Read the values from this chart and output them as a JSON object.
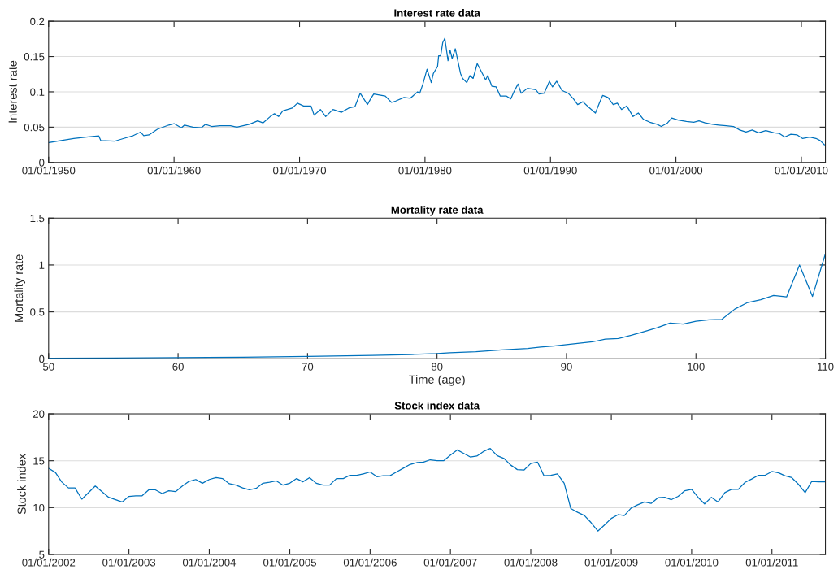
{
  "chart_data": [
    {
      "type": "line",
      "title": "Interest rate data",
      "ylabel": "Interest rate",
      "grid": "y",
      "color": "#0072bd",
      "x": [
        "1950-01",
        "1951-01",
        "1952-01",
        "1953-01",
        "1954-01",
        "1954-03",
        "1955-04",
        "1956-01",
        "1956-10",
        "1957-05",
        "1957-08",
        "1958-01",
        "1958-09",
        "1959-08",
        "1960-01",
        "1960-08",
        "1960-11",
        "1961-07",
        "1962-03",
        "1962-07",
        "1963-01",
        "1963-09",
        "1964-07",
        "1965-01",
        "1966-01",
        "1966-09",
        "1967-02",
        "1967-09",
        "1968-01",
        "1968-05",
        "1968-09",
        "1969-06",
        "1969-11",
        "1970-05",
        "1970-12",
        "1971-03",
        "1971-09",
        "1972-02",
        "1972-09",
        "1973-05",
        "1973-12",
        "1974-06",
        "1974-11",
        "1975-06",
        "1975-09",
        "1975-12",
        "1976-11",
        "1977-05",
        "1977-09",
        "1978-05",
        "1978-11",
        "1979-06",
        "1979-08",
        "1979-11",
        "1980-03",
        "1980-07",
        "1980-09",
        "1981-01",
        "1981-02",
        "1981-04",
        "1981-06",
        "1981-08",
        "1981-11",
        "1982-01",
        "1982-03",
        "1982-06",
        "1982-11",
        "1983-01",
        "1983-05",
        "1983-08",
        "1983-11",
        "1984-03",
        "1984-11",
        "1985-01",
        "1985-05",
        "1985-09",
        "1986-01",
        "1986-07",
        "1986-11",
        "1987-02",
        "1987-06",
        "1987-09",
        "1988-03",
        "1988-11",
        "1989-02",
        "1989-07",
        "1989-12",
        "1990-03",
        "1990-07",
        "1990-12",
        "1991-06",
        "1991-11",
        "1992-03",
        "1992-08",
        "1993-01",
        "1993-08",
        "1993-12",
        "1994-03",
        "1994-08",
        "1995-01",
        "1995-05",
        "1995-09",
        "1996-02",
        "1996-08",
        "1997-01",
        "1997-06",
        "1997-12",
        "1998-07",
        "1998-11",
        "1999-05",
        "1999-09",
        "2000-03",
        "2000-11",
        "2001-06",
        "2001-11",
        "2002-05",
        "2002-12",
        "2003-06",
        "2004-01",
        "2004-08",
        "2005-02",
        "2005-08",
        "2006-02",
        "2006-08",
        "2007-03",
        "2007-11",
        "2008-04",
        "2008-09",
        "2009-03",
        "2009-09",
        "2010-02",
        "2010-09",
        "2011-03",
        "2011-07",
        "2011-11"
      ],
      "values": [
        0.028,
        0.031,
        0.034,
        0.036,
        0.0375,
        0.031,
        0.03,
        0.034,
        0.038,
        0.043,
        0.038,
        0.039,
        0.047,
        0.053,
        0.055,
        0.049,
        0.053,
        0.05,
        0.049,
        0.054,
        0.051,
        0.052,
        0.052,
        0.05,
        0.054,
        0.059,
        0.056,
        0.065,
        0.069,
        0.065,
        0.073,
        0.077,
        0.084,
        0.08,
        0.08,
        0.067,
        0.075,
        0.065,
        0.075,
        0.071,
        0.077,
        0.079,
        0.098,
        0.082,
        0.09,
        0.097,
        0.094,
        0.085,
        0.087,
        0.092,
        0.091,
        0.1,
        0.098,
        0.111,
        0.132,
        0.113,
        0.126,
        0.136,
        0.151,
        0.151,
        0.17,
        0.176,
        0.144,
        0.159,
        0.147,
        0.161,
        0.126,
        0.119,
        0.113,
        0.123,
        0.119,
        0.14,
        0.117,
        0.123,
        0.108,
        0.107,
        0.094,
        0.094,
        0.09,
        0.1,
        0.111,
        0.098,
        0.105,
        0.103,
        0.097,
        0.098,
        0.115,
        0.107,
        0.115,
        0.102,
        0.098,
        0.09,
        0.082,
        0.086,
        0.079,
        0.07,
        0.085,
        0.095,
        0.092,
        0.082,
        0.084,
        0.075,
        0.08,
        0.065,
        0.07,
        0.061,
        0.057,
        0.054,
        0.051,
        0.056,
        0.063,
        0.06,
        0.058,
        0.057,
        0.059,
        0.056,
        0.054,
        0.053,
        0.052,
        0.051,
        0.046,
        0.043,
        0.046,
        0.042,
        0.045,
        0.042,
        0.041,
        0.036,
        0.04,
        0.039,
        0.034,
        0.036,
        0.034,
        0.031,
        0.025
      ],
      "xlim": [
        "1950-01-01",
        "2011-12-01"
      ],
      "xticks": [
        {
          "value": "1950-01-01",
          "label": "01/01/1950"
        },
        {
          "value": "1960-01-01",
          "label": "01/01/1960"
        },
        {
          "value": "1970-01-01",
          "label": "01/01/1970"
        },
        {
          "value": "1980-01-01",
          "label": "01/01/1980"
        },
        {
          "value": "1990-01-01",
          "label": "01/01/1990"
        },
        {
          "value": "2000-01-01",
          "label": "01/01/2000"
        },
        {
          "value": "2010-01-01",
          "label": "01/01/2010"
        }
      ],
      "ylim": [
        0,
        0.2
      ],
      "yticks": [
        0,
        0.05,
        0.1,
        0.15,
        0.2
      ]
    },
    {
      "type": "line",
      "title": "Mortality rate data",
      "xlabel": "Time (age)",
      "ylabel": "Mortality rate",
      "grid": "y",
      "color": "#0072bd",
      "x": [
        50,
        55,
        60,
        65,
        70,
        75,
        78,
        80,
        81,
        83,
        85,
        87,
        88,
        89,
        90,
        91,
        92,
        93,
        94,
        95,
        96,
        97,
        98,
        99,
        100,
        101,
        102,
        103,
        104,
        105,
        106,
        107,
        108,
        109,
        110
      ],
      "values": [
        0.005,
        0.008,
        0.012,
        0.017,
        0.025,
        0.035,
        0.045,
        0.055,
        0.065,
        0.075,
        0.095,
        0.11,
        0.125,
        0.135,
        0.15,
        0.165,
        0.18,
        0.21,
        0.215,
        0.25,
        0.29,
        0.33,
        0.38,
        0.37,
        0.4,
        0.415,
        0.42,
        0.53,
        0.6,
        0.63,
        0.675,
        0.66,
        1.0,
        0.665,
        1.12
      ],
      "xlim": [
        50,
        110
      ],
      "xticks": [
        50,
        60,
        70,
        80,
        90,
        100,
        110
      ],
      "ylim": [
        0,
        1.5
      ],
      "yticks": [
        0,
        0.5,
        1,
        1.5
      ]
    },
    {
      "type": "line",
      "title": "Stock index data",
      "ylabel": "Stock index",
      "grid": "y",
      "color": "#0072bd",
      "x": [
        "2002-01",
        "2002-02",
        "2002-03",
        "2002-04",
        "2002-05",
        "2002-06",
        "2002-08",
        "2002-10",
        "2002-12",
        "2003-01",
        "2003-02",
        "2003-03",
        "2003-04",
        "2003-05",
        "2003-06",
        "2003-07",
        "2003-08",
        "2003-09",
        "2003-10",
        "2003-11",
        "2003-12",
        "2004-01",
        "2004-02",
        "2004-03",
        "2004-04",
        "2004-05",
        "2004-06",
        "2004-07",
        "2004-08",
        "2004-09",
        "2004-10",
        "2004-11",
        "2004-12",
        "2005-01",
        "2005-02",
        "2005-03",
        "2005-04",
        "2005-05",
        "2005-06",
        "2005-07",
        "2005-08",
        "2005-09",
        "2005-10",
        "2005-11",
        "2005-12",
        "2006-01",
        "2006-02",
        "2006-03",
        "2006-04",
        "2006-05",
        "2006-06",
        "2006-07",
        "2006-08",
        "2006-09",
        "2006-10",
        "2006-11",
        "2006-12",
        "2007-01",
        "2007-02",
        "2007-03",
        "2007-04",
        "2007-05",
        "2007-06",
        "2007-07",
        "2007-08",
        "2007-09",
        "2007-10",
        "2007-11",
        "2007-12",
        "2008-01",
        "2008-02",
        "2008-03",
        "2008-04",
        "2008-05",
        "2008-06",
        "2008-07",
        "2008-08",
        "2008-09",
        "2008-10",
        "2008-11",
        "2008-12",
        "2009-01",
        "2009-02",
        "2009-03",
        "2009-04",
        "2009-05",
        "2009-06",
        "2009-07",
        "2009-08",
        "2009-09",
        "2009-10",
        "2009-11",
        "2009-12",
        "2010-01",
        "2010-02",
        "2010-03",
        "2010-04",
        "2010-05",
        "2010-06",
        "2010-07",
        "2010-08",
        "2010-09",
        "2010-10",
        "2010-11",
        "2010-12",
        "2011-01",
        "2011-02",
        "2011-03",
        "2011-04",
        "2011-05",
        "2011-06",
        "2011-07",
        "2011-08",
        "2011-09"
      ],
      "values": [
        14.2,
        13.75,
        12.75,
        12.1,
        12.1,
        10.9,
        12.3,
        11.1,
        10.6,
        11.2,
        11.25,
        11.25,
        11.9,
        11.9,
        11.5,
        11.8,
        11.7,
        12.3,
        12.8,
        13.0,
        12.6,
        13.0,
        13.2,
        13.1,
        12.55,
        12.4,
        12.1,
        11.9,
        12.05,
        12.6,
        12.7,
        12.85,
        12.4,
        12.6,
        13.1,
        12.75,
        13.2,
        12.6,
        12.4,
        12.4,
        13.1,
        13.1,
        13.45,
        13.45,
        13.6,
        13.8,
        13.3,
        13.4,
        13.4,
        13.8,
        14.2,
        14.6,
        14.8,
        14.85,
        15.1,
        15.0,
        15.0,
        15.6,
        16.15,
        15.8,
        15.4,
        15.5,
        16.0,
        16.3,
        15.55,
        15.25,
        14.55,
        14.05,
        14.0,
        14.7,
        14.85,
        13.4,
        13.45,
        13.6,
        12.6,
        9.9,
        9.5,
        9.15,
        8.4,
        7.5,
        8.15,
        8.85,
        9.25,
        9.15,
        9.95,
        10.3,
        10.6,
        10.45,
        11.05,
        11.1,
        10.85,
        11.2,
        11.8,
        11.95,
        11.05,
        10.4,
        11.1,
        10.6,
        11.6,
        11.95,
        11.95,
        12.7,
        13.05,
        13.45,
        13.45,
        13.85,
        13.7,
        13.4,
        13.2,
        12.5,
        11.6,
        12.8,
        12.75,
        12.75
      ],
      "xlim": [
        "2002-01-01",
        "2011-09-01"
      ],
      "xticks": [
        {
          "value": "2002-01-01",
          "label": "01/01/2002"
        },
        {
          "value": "2003-01-01",
          "label": "01/01/2003"
        },
        {
          "value": "2004-01-01",
          "label": "01/01/2004"
        },
        {
          "value": "2005-01-01",
          "label": "01/01/2005"
        },
        {
          "value": "2006-01-01",
          "label": "01/01/2006"
        },
        {
          "value": "2007-01-01",
          "label": "01/01/2007"
        },
        {
          "value": "2008-01-01",
          "label": "01/01/2008"
        },
        {
          "value": "2009-01-01",
          "label": "01/01/2009"
        },
        {
          "value": "2010-01-01",
          "label": "01/01/2010"
        },
        {
          "value": "2011-01-01",
          "label": "01/01/2011"
        }
      ],
      "ylim": [
        5,
        20
      ],
      "yticks": [
        5,
        10,
        15,
        20
      ]
    }
  ]
}
